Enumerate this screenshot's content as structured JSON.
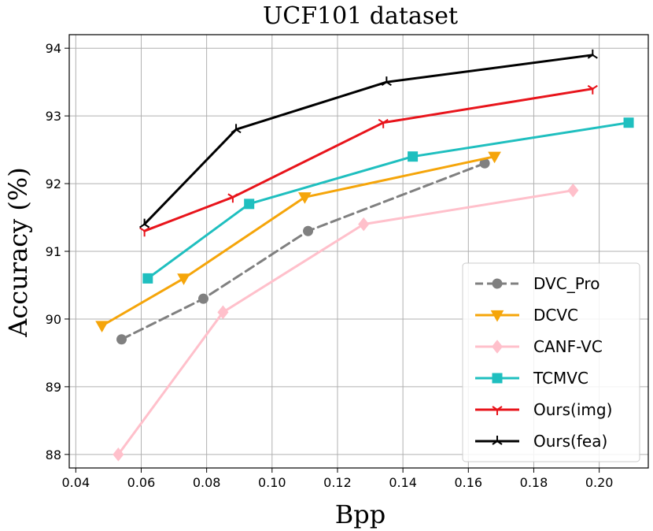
{
  "chart_data": {
    "type": "line",
    "title": "UCF101 dataset",
    "xlabel": "Bpp",
    "ylabel": "Accuracy (%)",
    "xlim": [
      0.038,
      0.215
    ],
    "ylim": [
      87.8,
      94.2
    ],
    "xticks": [
      0.04,
      0.06,
      0.08,
      0.1,
      0.12,
      0.14,
      0.16,
      0.18,
      0.2
    ],
    "xtick_labels": [
      "0.04",
      "0.06",
      "0.08",
      "0.10",
      "0.12",
      "0.14",
      "0.16",
      "0.18",
      "0.20"
    ],
    "yticks": [
      88,
      89,
      90,
      91,
      92,
      93,
      94
    ],
    "ytick_labels": [
      "88",
      "89",
      "90",
      "91",
      "92",
      "93",
      "94"
    ],
    "grid": true,
    "legend_position": "lower-right",
    "series": [
      {
        "name": "DVC_Pro",
        "color": "#808080",
        "marker": "circle",
        "dashed": true,
        "x": [
          0.054,
          0.079,
          0.111,
          0.165
        ],
        "y": [
          89.7,
          90.3,
          91.3,
          92.3
        ]
      },
      {
        "name": "DCVC",
        "color": "#f5a50a",
        "marker": "triangle-down",
        "dashed": false,
        "x": [
          0.048,
          0.073,
          0.11,
          0.168
        ],
        "y": [
          89.9,
          90.6,
          91.8,
          92.4
        ]
      },
      {
        "name": "CANF-VC",
        "color": "#ffc0cb",
        "marker": "diamond",
        "dashed": false,
        "x": [
          0.053,
          0.085,
          0.128,
          0.192
        ],
        "y": [
          88.0,
          90.1,
          91.4,
          91.9
        ]
      },
      {
        "name": "TCMVC",
        "color": "#1fbfbf",
        "marker": "square",
        "dashed": false,
        "x": [
          0.062,
          0.093,
          0.143,
          0.209
        ],
        "y": [
          90.6,
          91.7,
          92.4,
          92.9
        ]
      },
      {
        "name": "Ours(img)",
        "color": "#e8141b",
        "marker": "tri-down",
        "dashed": false,
        "x": [
          0.061,
          0.088,
          0.134,
          0.198
        ],
        "y": [
          91.3,
          91.8,
          92.9,
          93.4
        ]
      },
      {
        "name": "Ours(fea)",
        "color": "#000000",
        "marker": "tri-up",
        "dashed": false,
        "x": [
          0.061,
          0.089,
          0.135,
          0.198
        ],
        "y": [
          91.4,
          92.8,
          93.5,
          93.9
        ]
      }
    ]
  }
}
